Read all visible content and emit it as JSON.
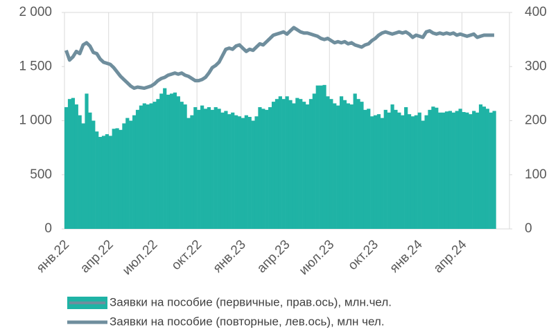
{
  "chart_data": {
    "type": "bar-line",
    "categories": [
      "янв.22",
      null,
      null,
      null,
      null,
      null,
      null,
      null,
      null,
      null,
      null,
      null,
      null,
      "апр.22",
      null,
      null,
      null,
      null,
      null,
      null,
      null,
      null,
      null,
      null,
      null,
      null,
      "июл.22",
      null,
      null,
      null,
      null,
      null,
      null,
      null,
      null,
      null,
      null,
      null,
      null,
      "окт.22",
      null,
      null,
      null,
      null,
      null,
      null,
      null,
      null,
      null,
      null,
      null,
      null,
      "янв.23",
      null,
      null,
      null,
      null,
      null,
      null,
      null,
      null,
      null,
      null,
      null,
      null,
      "апр.23",
      null,
      null,
      null,
      null,
      null,
      null,
      null,
      null,
      null,
      null,
      null,
      null,
      "июл.23",
      null,
      null,
      null,
      null,
      null,
      null,
      null,
      null,
      null,
      null,
      null,
      null,
      "окт.23",
      null,
      null,
      null,
      null,
      null,
      null,
      null,
      null,
      null,
      null,
      null,
      null,
      "янв.24",
      null,
      null,
      null,
      null,
      null,
      null,
      null,
      null,
      null,
      null,
      null,
      null,
      "апр.24",
      null,
      null,
      null,
      null,
      null,
      null,
      null,
      null,
      null
    ],
    "series": [
      {
        "name": "Заявки на пособие (первичные, прав.ось), млн.чел.",
        "color": "#1fb3a5",
        "kind": "bar",
        "axis": "y2",
        "values": [
          225,
          240,
          242,
          230,
          210,
          195,
          250,
          215,
          200,
          180,
          170,
          172,
          175,
          172,
          185,
          186,
          183,
          195,
          205,
          200,
          210,
          220,
          228,
          232,
          230,
          232,
          235,
          240,
          250,
          260,
          248,
          250,
          252,
          245,
          235,
          230,
          205,
          210,
          225,
          220,
          228,
          222,
          225,
          220,
          225,
          222,
          215,
          218,
          212,
          215,
          210,
          208,
          205,
          210,
          207,
          200,
          208,
          225,
          222,
          220,
          225,
          235,
          240,
          245,
          240,
          245,
          238,
          232,
          242,
          240,
          235,
          230,
          240,
          250,
          265,
          265,
          266,
          245,
          240,
          232,
          228,
          245,
          238,
          232,
          230,
          250,
          240,
          235,
          220,
          222,
          208,
          210,
          212,
          205,
          220,
          215,
          230,
          220,
          215,
          210,
          225,
          212,
          208,
          210,
          215,
          200,
          210,
          220,
          226,
          224,
          215,
          215,
          217,
          218,
          215,
          218,
          222,
          216,
          215,
          212,
          218,
          215,
          230,
          226,
          222,
          215,
          218
        ]
      },
      {
        "name": "Заявки на пособие (повторные, лев.ось), млн чел.",
        "color": "#6f8e9d",
        "kind": "line",
        "values": [
          1650,
          1560,
          1590,
          1640,
          1620,
          1700,
          1720,
          1690,
          1630,
          1620,
          1570,
          1540,
          1530,
          1520,
          1490,
          1450,
          1410,
          1380,
          1350,
          1320,
          1300,
          1310,
          1305,
          1300,
          1310,
          1320,
          1340,
          1370,
          1390,
          1400,
          1420,
          1430,
          1440,
          1430,
          1440,
          1420,
          1410,
          1390,
          1370,
          1370,
          1380,
          1400,
          1440,
          1490,
          1510,
          1540,
          1600,
          1660,
          1670,
          1660,
          1690,
          1700,
          1670,
          1640,
          1660,
          1650,
          1680,
          1710,
          1700,
          1730,
          1760,
          1790,
          1800,
          1810,
          1820,
          1800,
          1830,
          1860,
          1840,
          1820,
          1810,
          1810,
          1800,
          1790,
          1780,
          1760,
          1750,
          1760,
          1740,
          1720,
          1730,
          1720,
          1730,
          1710,
          1720,
          1700,
          1690,
          1680,
          1700,
          1710,
          1740,
          1760,
          1790,
          1810,
          1820,
          1810,
          1800,
          1810,
          1820,
          1810,
          1820,
          1800,
          1770,
          1790,
          1780,
          1770,
          1820,
          1830,
          1810,
          1800,
          1810,
          1800,
          1810,
          1800,
          1810,
          1790,
          1800,
          1790,
          1780,
          1790,
          1800,
          1770,
          1780,
          1790,
          1790,
          1790,
          1790
        ]
      }
    ],
    "ylim": [
      0,
      2000
    ],
    "yticks": [
      0,
      500,
      {
        "value": 1000,
        "label": "1 000"
      },
      {
        "value": 1500,
        "label": "1 500"
      },
      {
        "value": 2000,
        "label": "2 000"
      }
    ],
    "y2lim": [
      0,
      400
    ],
    "y2ticks": [
      0,
      100,
      200,
      300,
      400
    ],
    "grid": true,
    "legend": "bottom"
  }
}
